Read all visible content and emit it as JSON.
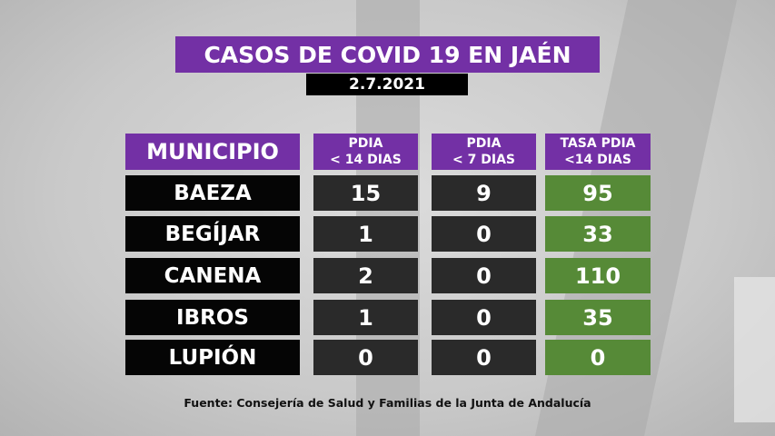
{
  "title": "CASOS DE COVID 19 EN JAÉN",
  "date": "2.7.2021",
  "table": {
    "headers": [
      {
        "line1": "MUNICIPIO"
      },
      {
        "line1": "PDIA",
        "line2": "< 14 DIAS"
      },
      {
        "line1": "PDIA",
        "line2": "< 7 DIAS"
      },
      {
        "line1": "TASA PDIA",
        "line2": "<14 DIAS"
      }
    ],
    "rows": [
      {
        "municipio": "BAEZA",
        "pdia14": "15",
        "pdia7": "9",
        "tasa": "95"
      },
      {
        "municipio": "BEGÍJAR",
        "pdia14": "1",
        "pdia7": "0",
        "tasa": "33"
      },
      {
        "municipio": "CANENA",
        "pdia14": "2",
        "pdia7": "0",
        "tasa": "110"
      },
      {
        "municipio": "IBROS",
        "pdia14": "1",
        "pdia7": "0",
        "tasa": "35"
      },
      {
        "municipio": "LUPIÓN",
        "pdia14": "0",
        "pdia7": "0",
        "tasa": "0"
      }
    ]
  },
  "footer": "Fuente:  Consejería de Salud y Familias de la Junta de Andalucía",
  "colors": {
    "header": "#7330a5",
    "rate": "#568a37",
    "name": "#050505",
    "value": "#2a2a2a"
  }
}
